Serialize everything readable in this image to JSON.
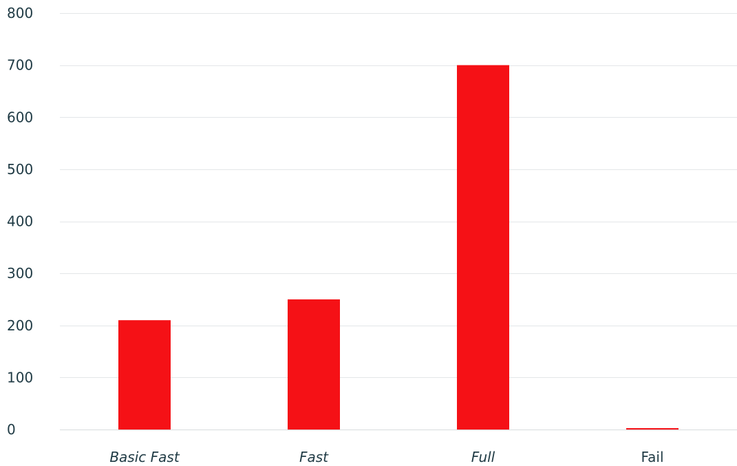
{
  "chart_data": {
    "type": "bar",
    "categories": [
      "Basic Fast",
      "Fast",
      "Full",
      "Fail"
    ],
    "category_italic": [
      true,
      true,
      true,
      false
    ],
    "values": [
      210,
      250,
      700,
      2
    ],
    "title": "",
    "xlabel": "",
    "ylabel": "",
    "ylim": [
      0,
      800
    ],
    "yticks": [
      0,
      100,
      200,
      300,
      400,
      500,
      600,
      700,
      800
    ],
    "grid": true,
    "legend": "none",
    "colors": {
      "bar": "#f51116",
      "grid": "#e3e6e8",
      "text": "#1f3a44"
    }
  }
}
